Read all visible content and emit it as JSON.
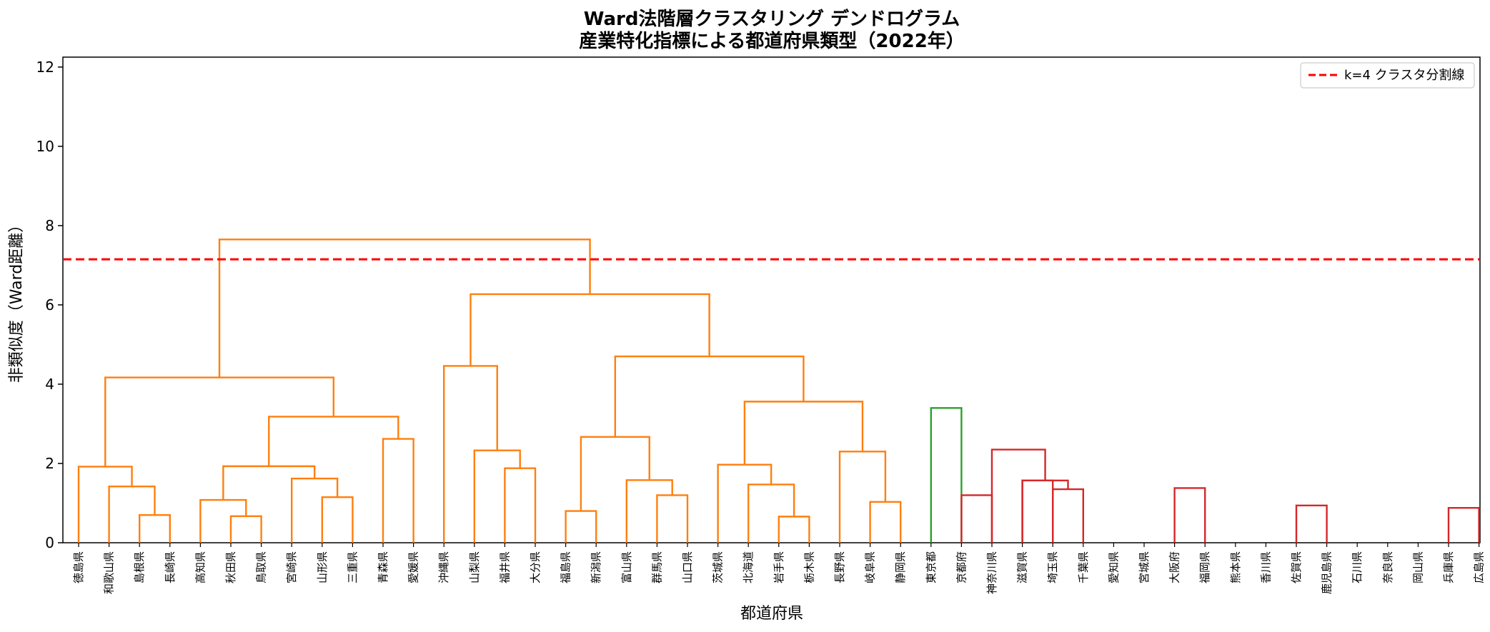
{
  "chart_data": {
    "type": "dendrogram",
    "title": [
      "Ward法階層クラスタリング デンドログラム",
      "産業特化指標による都道府県類型（2022年）"
    ],
    "xlabel": "都道府県",
    "ylabel": "非類似度（Ward距離）",
    "ylim": [
      0,
      12.25
    ],
    "yticks": [
      0,
      2,
      4,
      6,
      8,
      10,
      12
    ],
    "grid": false,
    "legend": {
      "position": "top-right",
      "label": "k=4 クラスタ分割線"
    },
    "cut_height": 7.15,
    "colors": {
      "orange": "#ff7f0e",
      "green": "#2ca02c",
      "red": "#d62728",
      "blue": "#1f77b4",
      "cut": "#ff0000"
    },
    "leaves": [
      "徳島県",
      "和歌山県",
      "島根県",
      "長崎県",
      "高知県",
      "秋田県",
      "鳥取県",
      "宮崎県",
      "山形県",
      "三重県",
      "青森県",
      "愛媛県",
      "沖縄県",
      "山梨県",
      "福井県",
      "大分県",
      "福島県",
      "新潟県",
      "富山県",
      "群馬県",
      "山口県",
      "茨城県",
      "北海道",
      "岩手県",
      "栃木県",
      "長野県",
      "岐阜県",
      "静岡県",
      "東京都",
      "京都府",
      "神奈川県",
      "滋賀県",
      "埼玉県",
      "千葉県",
      "愛知県",
      "宮城県",
      "大阪府",
      "福岡県",
      "熊本県",
      "香川県",
      "佐賀県",
      "鹿児島県",
      "石川県",
      "奈良県",
      "岡山県",
      "兵庫県",
      "広島県"
    ],
    "merges": [
      {
        "a": "L2",
        "b": "L3",
        "h": 0.7,
        "c": "orange"
      },
      {
        "a": "L1",
        "b": "M0",
        "h": 1.42,
        "c": "orange"
      },
      {
        "a": "L0",
        "b": "M1",
        "h": 1.92,
        "c": "orange"
      },
      {
        "a": "L5",
        "b": "L6",
        "h": 0.67,
        "c": "orange"
      },
      {
        "a": "L4",
        "b": "M3",
        "h": 1.08,
        "c": "orange"
      },
      {
        "a": "L8",
        "b": "L9",
        "h": 1.15,
        "c": "orange"
      },
      {
        "a": "L7",
        "b": "M5",
        "h": 1.62,
        "c": "orange"
      },
      {
        "a": "M4",
        "b": "M6",
        "h": 1.93,
        "c": "orange"
      },
      {
        "a": "L10",
        "b": "L11",
        "h": 2.62,
        "c": "orange"
      },
      {
        "a": "M7",
        "b": "M8",
        "h": 3.18,
        "c": "orange"
      },
      {
        "a": "M2",
        "b": "M9",
        "h": 4.17,
        "c": "orange"
      },
      {
        "a": "L14",
        "b": "L15",
        "h": 1.88,
        "c": "orange"
      },
      {
        "a": "L13",
        "b": "M11",
        "h": 2.33,
        "c": "orange"
      },
      {
        "a": "L12",
        "b": "M12",
        "h": 4.46,
        "c": "orange"
      },
      {
        "a": "L16",
        "b": "L17",
        "h": 0.8,
        "c": "orange"
      },
      {
        "a": "L19",
        "b": "L20",
        "h": 1.2,
        "c": "orange"
      },
      {
        "a": "L18",
        "b": "M15",
        "h": 1.58,
        "c": "orange"
      },
      {
        "a": "M14",
        "b": "M16",
        "h": 2.67,
        "c": "orange"
      },
      {
        "a": "L23",
        "b": "L24",
        "h": 0.66,
        "c": "orange"
      },
      {
        "a": "L22",
        "b": "M18",
        "h": 1.47,
        "c": "orange"
      },
      {
        "a": "L21",
        "b": "M19",
        "h": 1.97,
        "c": "orange"
      },
      {
        "a": "L26",
        "b": "L27",
        "h": 1.03,
        "c": "orange"
      },
      {
        "a": "L25",
        "b": "M21",
        "h": 2.3,
        "c": "orange"
      },
      {
        "a": "M20",
        "b": "M22",
        "h": 3.56,
        "c": "orange"
      },
      {
        "a": "M17",
        "b": "M23",
        "h": 4.7,
        "c": "orange"
      },
      {
        "a": "M13",
        "b": "M24",
        "h": 6.27,
        "c": "orange"
      },
      {
        "a": "M10",
        "b": "M25",
        "h": 7.65,
        "c": "orange"
      },
      {
        "a": "L28",
        "b": "L29",
        "h": 3.4,
        "c": "green"
      },
      {
        "a": "L32",
        "b": "L33",
        "h": 1.57,
        "c": "red"
      },
      {
        "a": "M28",
        "b": "L34",
        "h": 1.35,
        "c": "red",
        "note": "unused"
      },
      {
        "a": "L30",
        "b": "L31",
        "h": 1.2,
        "c": "red"
      }
    ]
  }
}
